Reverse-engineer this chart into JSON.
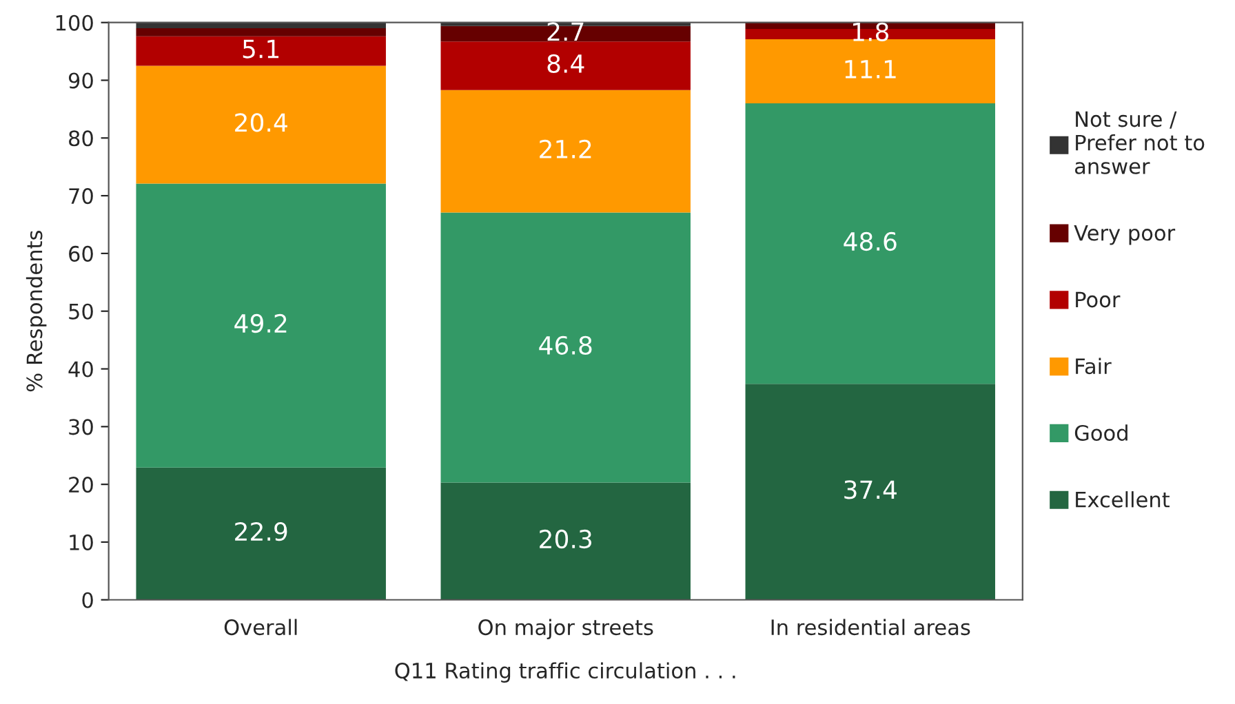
{
  "chart_data": {
    "type": "bar",
    "stacked": true,
    "xlabel": "Q11 Rating traffic circulation . . .",
    "ylabel": "% Respondents",
    "categories": [
      "Overall",
      "On major streets",
      "In residential areas"
    ],
    "series": [
      {
        "name": "Excellent",
        "color": "#236641",
        "values": [
          22.9,
          20.3,
          37.4
        ],
        "value_labels": [
          "22.9",
          "20.3",
          "37.4"
        ]
      },
      {
        "name": "Good",
        "color": "#339966",
        "values": [
          49.2,
          46.8,
          48.6
        ],
        "value_labels": [
          "49.2",
          "46.8",
          "48.6"
        ]
      },
      {
        "name": "Fair",
        "color": "#ff9900",
        "values": [
          20.4,
          21.2,
          11.1
        ],
        "value_labels": [
          "20.4",
          "21.2",
          "11.1"
        ]
      },
      {
        "name": "Poor",
        "color": "#b20000",
        "values": [
          5.1,
          8.4,
          1.8
        ],
        "value_labels": [
          "5.1",
          "8.4",
          "1.8"
        ]
      },
      {
        "name": "Very poor",
        "color": "#660000",
        "values": [
          1.4,
          2.7,
          1.1
        ],
        "value_labels": [
          null,
          "2.7",
          null
        ]
      },
      {
        "name": "Not sure /\nPrefer not to\nanswer",
        "color": "#333333",
        "values": [
          1.0,
          0.6,
          0.0
        ],
        "value_labels": [
          null,
          null,
          null
        ]
      }
    ],
    "ylim": [
      0,
      100
    ],
    "yticks": [
      0,
      10,
      20,
      30,
      40,
      50,
      60,
      70,
      80,
      90,
      100
    ],
    "grid": false,
    "legend": "right"
  }
}
